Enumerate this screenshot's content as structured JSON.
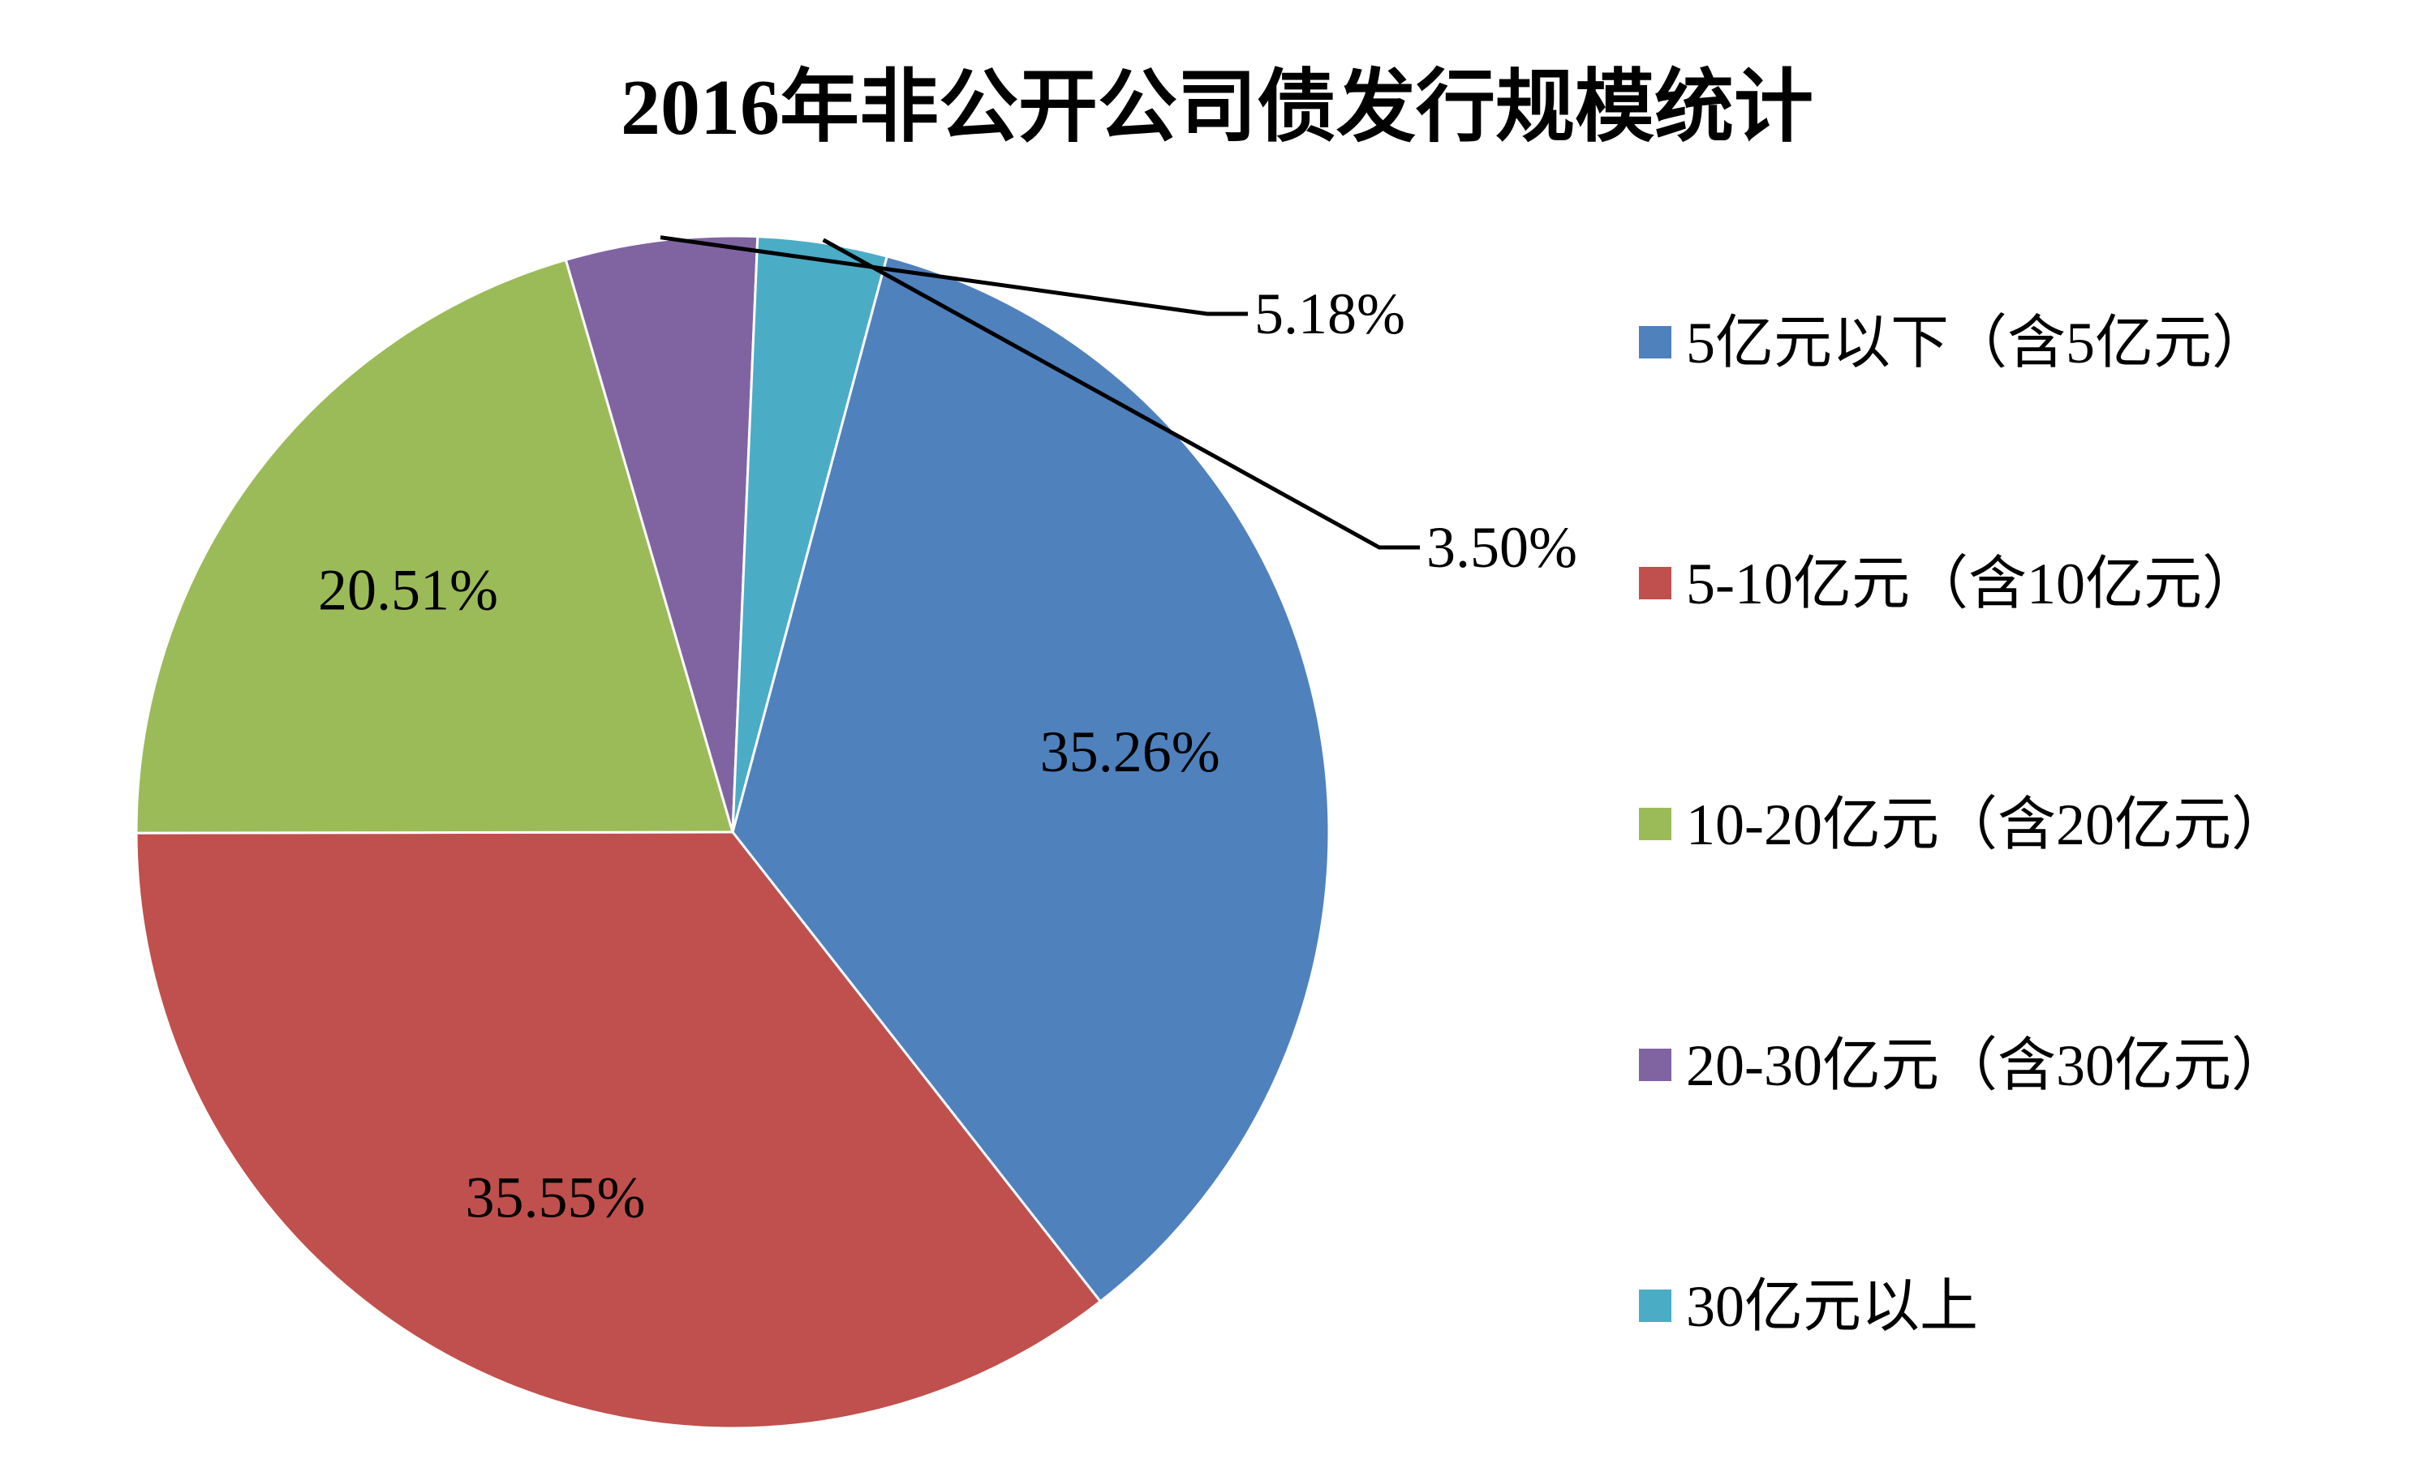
{
  "chart_data": {
    "type": "pie",
    "title": "2016年非公开公司债发行规模统计",
    "start_angle_deg": 15,
    "direction": "clockwise",
    "legend_position": "right",
    "slices": [
      {
        "label": "5亿元以下（含5亿元）",
        "value": 35.26,
        "value_label": "35.26%",
        "color": "#4F81BD",
        "label_style": "inside"
      },
      {
        "label": "5-10亿元（含10亿元）",
        "value": 35.55,
        "value_label": "35.55%",
        "color": "#C0504D",
        "label_style": "inside"
      },
      {
        "label": "10-20亿元（含20亿元）",
        "value": 20.51,
        "value_label": "20.51%",
        "color": "#9BBB59",
        "label_style": "inside"
      },
      {
        "label": "20-30亿元（含30亿元）",
        "value": 5.18,
        "value_label": "5.18%",
        "color": "#8064A2",
        "label_style": "outside"
      },
      {
        "label": "30亿元以上",
        "value": 3.5,
        "value_label": "3.50%",
        "color": "#4BACC6",
        "label_style": "outside"
      }
    ]
  }
}
